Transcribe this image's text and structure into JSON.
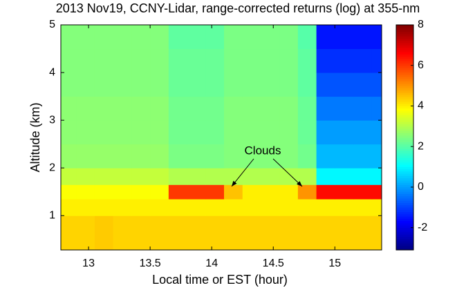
{
  "chart_data": {
    "type": "heatmap",
    "title": "2013 Nov19, CCNY-Lidar, range-corrected returns (log) at 355-nm",
    "x_label": "Local time or EST (hour)",
    "y_label": "Altitude (km)",
    "xlim": [
      12.775,
      15.38
    ],
    "xticks": [
      13,
      13.5,
      14,
      14.5,
      15
    ],
    "ylim": [
      0.28,
      5
    ],
    "yticks": [
      1,
      2,
      3,
      4,
      5
    ],
    "x_bins": [
      12.775,
      12.9,
      13.05,
      13.2,
      13.35,
      13.5,
      13.65,
      13.8,
      13.95,
      14.1,
      14.25,
      14.4,
      14.55,
      14.7,
      14.85,
      15.0,
      15.15,
      15.3,
      15.38
    ],
    "y_bins": [
      0.28,
      1,
      1.35,
      1.65,
      2,
      2.5,
      3,
      3.5,
      4,
      4.5,
      5
    ],
    "z": [
      [
        4.3,
        4.3,
        4.4,
        4.3,
        4.3,
        4.3,
        4.3,
        4.3,
        4.3,
        4.3,
        4.3,
        4.3,
        4.3,
        4.3,
        4.3,
        4.3,
        4.3,
        4.3
      ],
      [
        4,
        4,
        4,
        4,
        4,
        4,
        4,
        4,
        4,
        4,
        4,
        4,
        4,
        4,
        4,
        4,
        4,
        4
      ],
      [
        3.8,
        3.8,
        3.8,
        3.8,
        3.8,
        3.8,
        6,
        6,
        6,
        4.5,
        4,
        4,
        4,
        5,
        6.5,
        6.5,
        6.5,
        6.5
      ],
      [
        3.2,
        3.2,
        3.2,
        3.2,
        3.2,
        3.2,
        3,
        3,
        3,
        3,
        3,
        3,
        3,
        3,
        1,
        1,
        1,
        1
      ],
      [
        2.7,
        2.7,
        2.7,
        2.7,
        2.7,
        2.7,
        2.4,
        2.4,
        2.4,
        2.5,
        2.5,
        2.5,
        2.5,
        2.3,
        0.3,
        0.3,
        0.3,
        0.3
      ],
      [
        2.6,
        2.6,
        2.6,
        2.6,
        2.6,
        2.6,
        2.3,
        2.3,
        2.3,
        2.5,
        2.5,
        2.5,
        2.5,
        2.2,
        0,
        0,
        0,
        0
      ],
      [
        2.6,
        2.6,
        2.6,
        2.6,
        2.6,
        2.6,
        2.3,
        2.3,
        2.3,
        2.5,
        2.5,
        2.5,
        2.5,
        2.2,
        -0.4,
        -0.4,
        -0.4,
        -0.4
      ],
      [
        2.5,
        2.5,
        2.5,
        2.5,
        2.5,
        2.5,
        2.2,
        2.2,
        2.2,
        2.4,
        2.4,
        2.4,
        2.4,
        2.1,
        -0.8,
        -0.8,
        -0.8,
        -0.8
      ],
      [
        2.5,
        2.5,
        2.5,
        2.5,
        2.5,
        2.5,
        2.2,
        2.2,
        2.2,
        2.4,
        2.4,
        2.4,
        2.4,
        2.1,
        -1.2,
        -1.2,
        -1.2,
        -1.2
      ],
      [
        2.5,
        2.5,
        2.5,
        2.5,
        2.5,
        2.5,
        2.1,
        2.1,
        2.1,
        2.4,
        2.4,
        2.4,
        2.4,
        2,
        -1.5,
        -1.5,
        -1.5,
        -1.5
      ]
    ],
    "colormap": "jet",
    "clim": [
      -3.1,
      8
    ],
    "cticks": [
      -2,
      0,
      2,
      4,
      6,
      8
    ],
    "annotation": "Clouds"
  }
}
